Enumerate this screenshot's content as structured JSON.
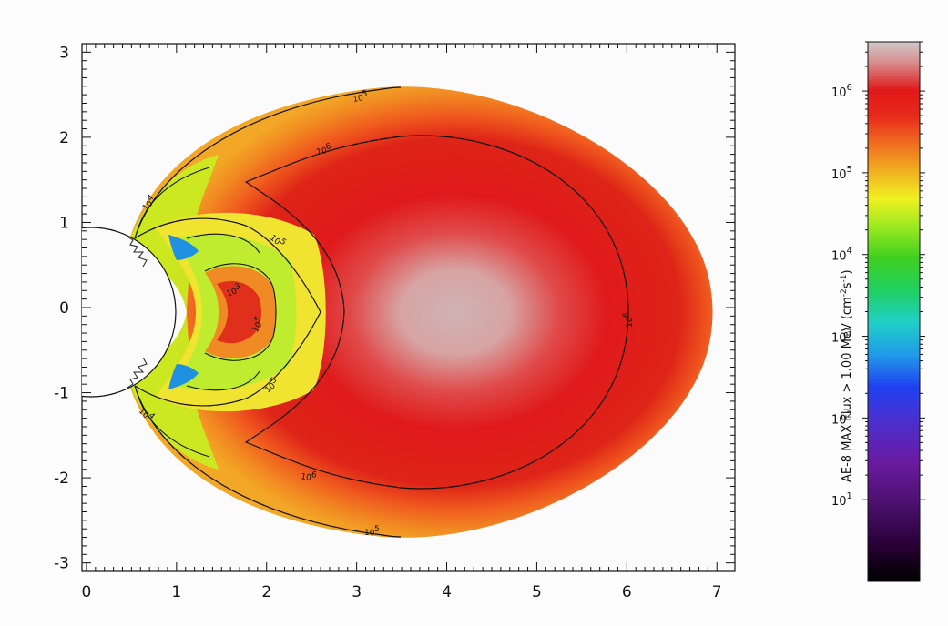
{
  "chart_data": {
    "type": "heatmap",
    "title": "",
    "xlabel": "",
    "ylabel": "",
    "xlim": [
      -0.05,
      7.2
    ],
    "ylim": [
      -3.1,
      3.1
    ],
    "x_ticks": [
      0,
      1,
      2,
      3,
      4,
      5,
      6,
      7
    ],
    "y_ticks": [
      3,
      2,
      1,
      0,
      -1,
      -2,
      -3
    ],
    "x_tick_labels": [
      "0",
      "1",
      "2",
      "3",
      "4",
      "5",
      "6",
      "7"
    ],
    "y_tick_labels": [
      "3",
      "2",
      "1",
      "0",
      "-1",
      "-2",
      "-3"
    ],
    "contours": [
      {
        "level": "10^5",
        "label": "10",
        "exp": "5"
      },
      {
        "level": "10^6",
        "label": "10",
        "exp": "6"
      },
      {
        "level": "10^4",
        "label": "10",
        "exp": "4"
      },
      {
        "level": "10^3",
        "label": "10",
        "exp": "3"
      }
    ],
    "colorbar": {
      "label": "AE-8 MAX Flux > 1.00 MeV (cm",
      "label_exp1": "-2",
      "label_mid": "s",
      "label_exp2": "-1",
      "label_end": ")",
      "scale": "log",
      "range": [
        1,
        4000000
      ],
      "ticks": [
        {
          "value": 1000000,
          "base": "10",
          "exp": "6"
        },
        {
          "value": 100000,
          "base": "10",
          "exp": "5"
        },
        {
          "value": 10000,
          "base": "10",
          "exp": "4"
        },
        {
          "value": 1000,
          "base": "10",
          "exp": "3"
        },
        {
          "value": 100,
          "base": "10",
          "exp": "2"
        },
        {
          "value": 10,
          "base": "10",
          "exp": "1"
        }
      ],
      "colors": [
        "#000000",
        "#3a0050",
        "#6a1aa0",
        "#4030d0",
        "#1f50f0",
        "#2aa0e8",
        "#20d0b0",
        "#20d050",
        "#60e020",
        "#b0f020",
        "#f0f020",
        "#f0c020",
        "#f08020",
        "#f05020",
        "#e01a1a",
        "#d0c0c0"
      ]
    }
  }
}
